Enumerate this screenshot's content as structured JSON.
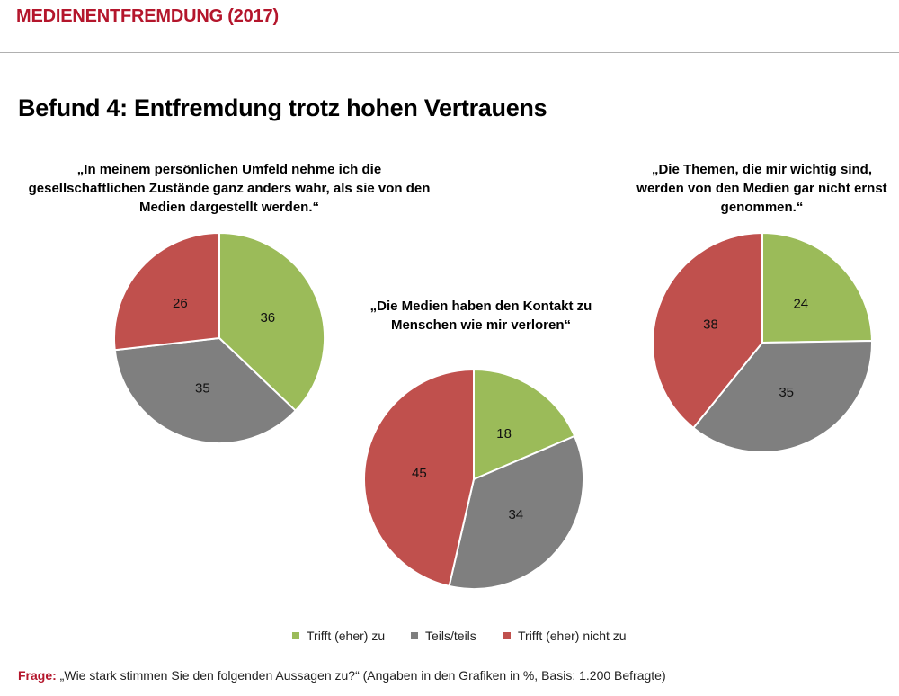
{
  "header": {
    "title": "MEDIENENTFREMDUNG (2017)"
  },
  "heading": "Befund 4: Entfremdung trotz hohen Vertrauens",
  "colors": {
    "green": "#9bbb59",
    "gray": "#7f7f7f",
    "red": "#c0504d",
    "brand": "#b4162c"
  },
  "chart_data": [
    {
      "type": "pie",
      "title": "„In meinem persönlichen Umfeld nehme ich die\ngesellschaftlichen  Zustände ganz anders wahr, als sie von den\nMedien dargestellt werden.“",
      "categories": [
        "Trifft (eher) zu",
        "Teils/teils",
        "Trifft (eher) nicht zu"
      ],
      "values": [
        36,
        35,
        26
      ]
    },
    {
      "type": "pie",
      "title": "„Die Medien haben den Kontakt zu\nMenschen wie mir verloren“",
      "categories": [
        "Trifft (eher) zu",
        "Teils/teils",
        "Trifft (eher) nicht zu"
      ],
      "values": [
        18,
        34,
        45
      ]
    },
    {
      "type": "pie",
      "title": "„Die Themen, die mir wichtig sind,\nwerden von den Medien gar nicht ernst\ngenommen.“",
      "categories": [
        "Trifft (eher) zu",
        "Teils/teils",
        "Trifft (eher) nicht zu"
      ],
      "values": [
        24,
        35,
        38
      ]
    }
  ],
  "legend": {
    "items": [
      {
        "label": "Trifft (eher) zu",
        "color": "#9bbb59"
      },
      {
        "label": "Teils/teils",
        "color": "#7f7f7f"
      },
      {
        "label": "Trifft (eher) nicht zu",
        "color": "#c0504d"
      }
    ]
  },
  "footnote": {
    "key": "Frage:",
    "text": " „Wie stark stimmen Sie den folgenden Aussagen zu?“ (Angaben in den Grafiken in %, Basis: 1.200 Befragte)"
  }
}
